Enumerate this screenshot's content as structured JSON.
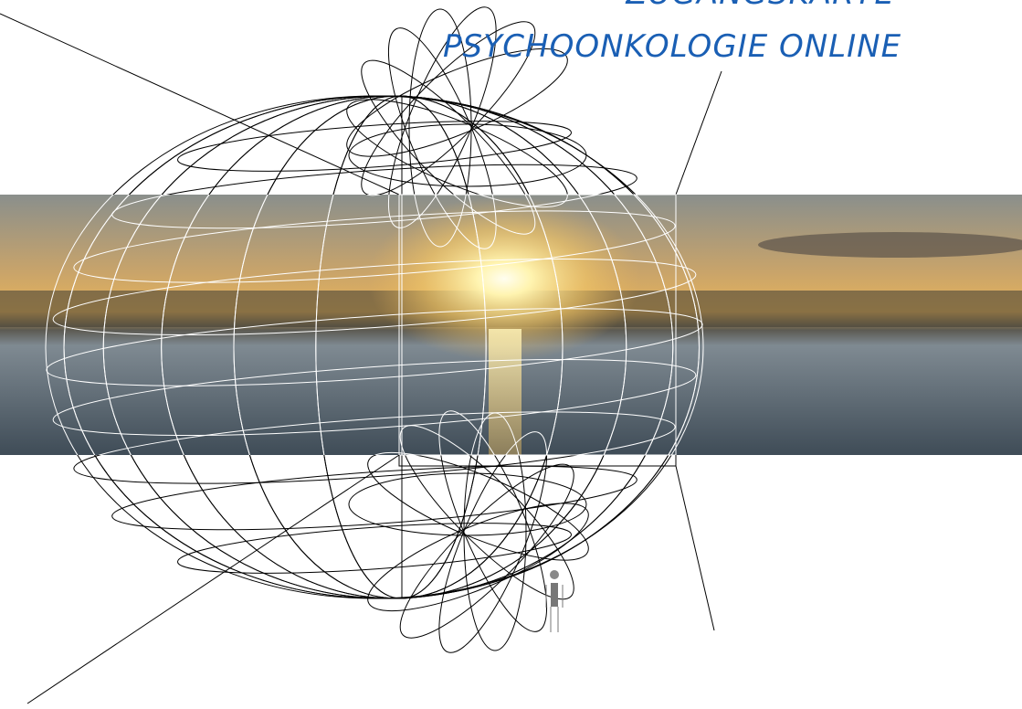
{
  "header": {
    "title_line1": "ZUGANGSKARTE",
    "title_line2": "PSYCHOONKOLOGIE ONLINE"
  }
}
